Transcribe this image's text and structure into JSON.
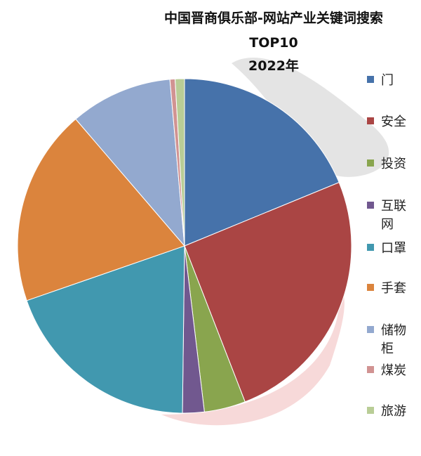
{
  "chart_data": {
    "type": "pie",
    "title": [
      "中国晋商俱乐部-网站产业关键词搜索",
      "TOP10",
      "2022年"
    ],
    "categories": [
      "门",
      "安全",
      "投资",
      "互联网",
      "口罩",
      "手套",
      "储物柜",
      "煤炭",
      "旅游"
    ],
    "values": [
      18.8,
      25.3,
      4,
      2.1,
      19.5,
      19,
      9.9,
      0.5,
      0.9
    ],
    "colors": [
      "#4672aa",
      "#aa4544",
      "#89a54e",
      "#71588f",
      "#4198af",
      "#db843d",
      "#93a9cf",
      "#d19392",
      "#b9cd96"
    ],
    "legend": "right"
  }
}
